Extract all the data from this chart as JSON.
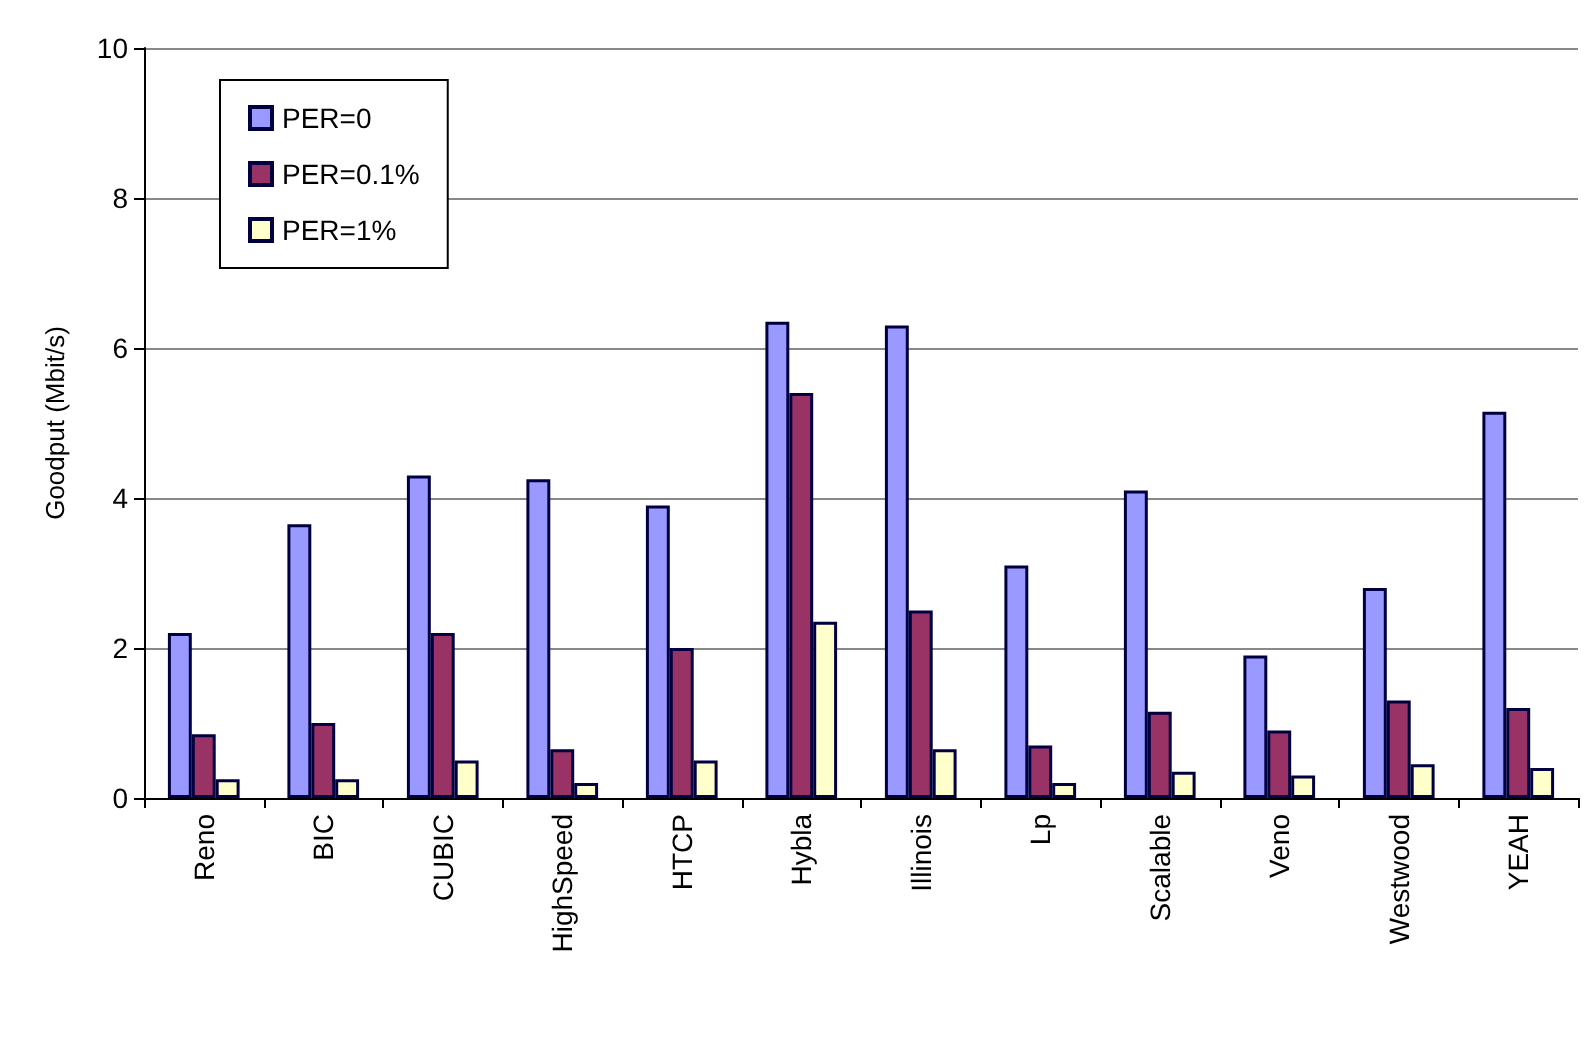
{
  "chart_data": {
    "type": "bar",
    "ylabel": "Goodput (Mbit/s)",
    "categories": [
      "Reno",
      "BIC",
      "CUBIC",
      "HighSpeed",
      "HTCP",
      "Hybla",
      "Illinois",
      "Lp",
      "Scalable",
      "Veno",
      "Westwood",
      "YEAH"
    ],
    "series": [
      {
        "name": "PER=0",
        "color": "#9999ff",
        "values": [
          2.2,
          3.65,
          4.3,
          4.25,
          3.9,
          6.35,
          6.3,
          3.1,
          4.1,
          1.9,
          2.8,
          5.15
        ]
      },
      {
        "name": "PER=0.1%",
        "color": "#993366",
        "values": [
          0.85,
          1.0,
          2.2,
          0.65,
          2.0,
          5.4,
          2.5,
          0.7,
          1.15,
          0.9,
          1.3,
          1.2
        ]
      },
      {
        "name": "PER=1%",
        "color": "#ffffcc",
        "values": [
          0.25,
          0.25,
          0.5,
          0.2,
          0.5,
          2.35,
          0.65,
          0.2,
          0.35,
          0.3,
          0.45,
          0.4
        ]
      }
    ],
    "ylim": [
      0,
      10
    ],
    "yticks": [
      0,
      2,
      4,
      6,
      8,
      10
    ],
    "grid": "y",
    "legend": "top left"
  }
}
